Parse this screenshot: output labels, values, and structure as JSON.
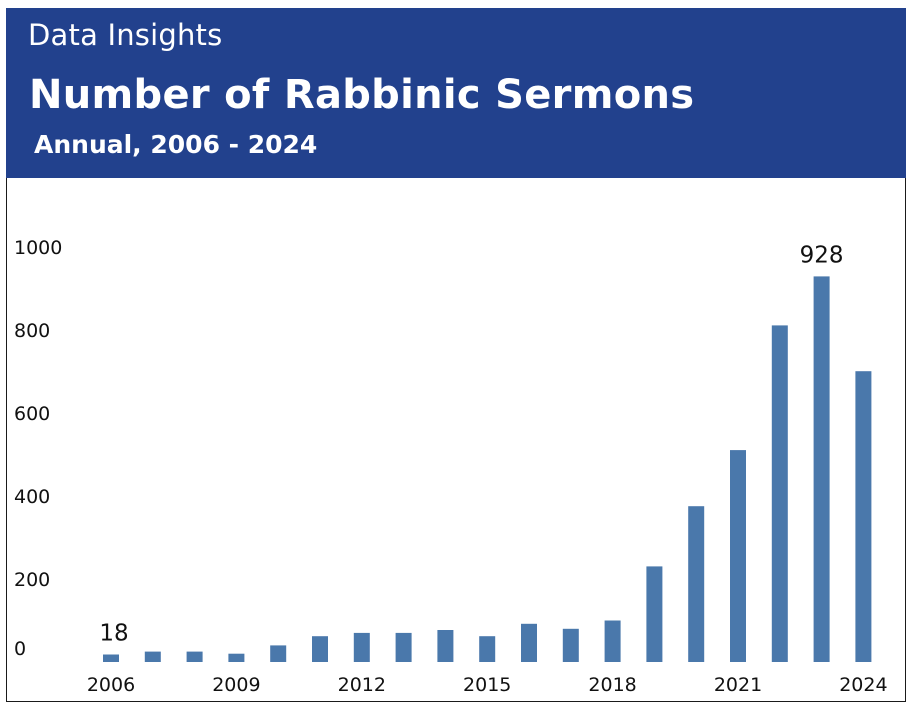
{
  "header": {
    "kicker": "Data Insights",
    "title": "Number of Rabbinic Sermons",
    "subtitle": "Annual, 2006 - 2024",
    "background_color": "#22418d",
    "text_color": "#ffffff"
  },
  "chart_data": {
    "type": "bar",
    "title": "Number of Rabbinic Sermons",
    "subtitle": "Annual, 2006 - 2024",
    "categories": [
      "2006",
      "2007",
      "2008",
      "2009",
      "2010",
      "2011",
      "2012",
      "2013",
      "2014",
      "2015",
      "2016",
      "2017",
      "2018",
      "2019",
      "2020",
      "2021",
      "2022",
      "2023",
      "2024"
    ],
    "values": [
      18,
      25,
      25,
      20,
      40,
      62,
      70,
      70,
      77,
      62,
      92,
      80,
      100,
      230,
      375,
      510,
      810,
      928,
      700
    ],
    "x_tick_labels": [
      "2006",
      "2009",
      "2012",
      "2015",
      "2018",
      "2021",
      "2024"
    ],
    "y_ticks": [
      0,
      200,
      400,
      600,
      800,
      1000
    ],
    "ylim": [
      0,
      1000
    ],
    "data_labels": [
      {
        "category": "2006",
        "text": "18"
      },
      {
        "category": "2023",
        "text": "928"
      }
    ],
    "xlabel": "",
    "ylabel": "",
    "bar_color": "#4a78ab",
    "grid": false,
    "legend": "none"
  }
}
